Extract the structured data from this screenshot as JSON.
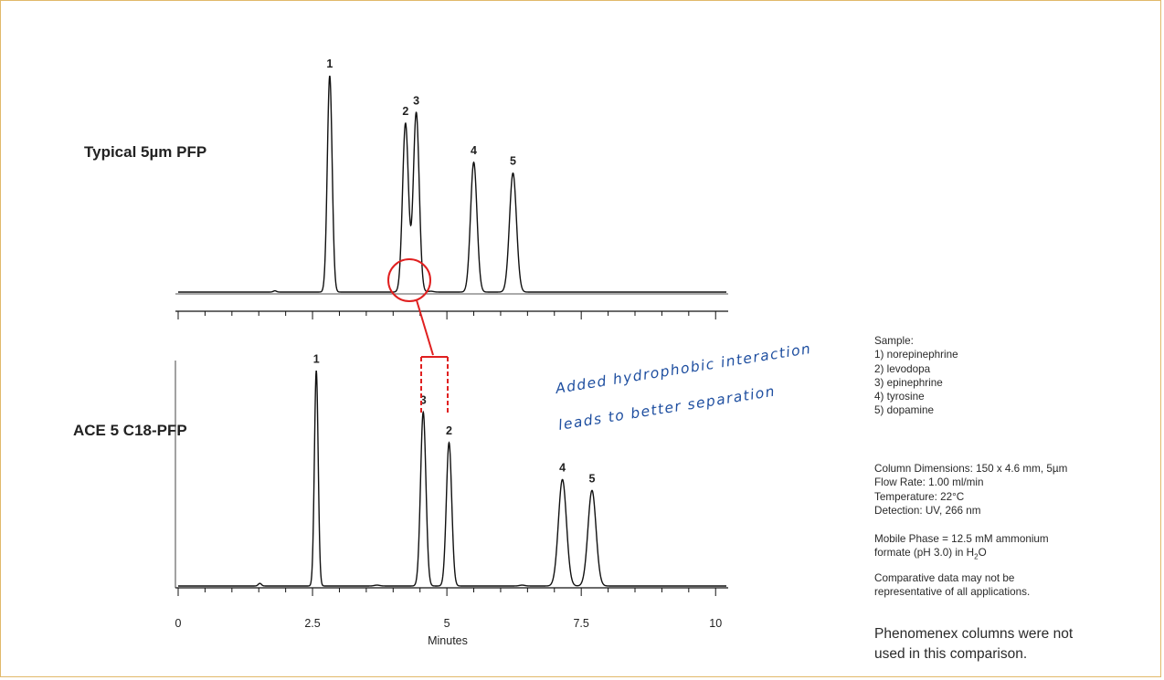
{
  "chart_data": [
    {
      "type": "line",
      "title": "Typical 5µm PFP",
      "peaks": [
        {
          "label": "1",
          "rt": 2.82,
          "height": 1.0,
          "width": 0.045
        },
        {
          "label": "2",
          "rt": 4.23,
          "height": 0.78,
          "width": 0.055
        },
        {
          "label": "3",
          "rt": 4.43,
          "height": 0.83,
          "width": 0.055
        },
        {
          "label": "4",
          "rt": 5.5,
          "height": 0.6,
          "width": 0.06
        },
        {
          "label": "5",
          "rt": 6.23,
          "height": 0.55,
          "width": 0.065
        }
      ],
      "xlim": [
        0,
        10.2
      ]
    },
    {
      "type": "line",
      "title": "ACE 5 C18-PFP",
      "peaks": [
        {
          "label": "1",
          "rt": 2.57,
          "height": 0.99,
          "width": 0.035
        },
        {
          "label": "3",
          "rt": 4.56,
          "height": 0.8,
          "width": 0.05
        },
        {
          "label": "2",
          "rt": 5.04,
          "height": 0.66,
          "width": 0.05
        },
        {
          "label": "4",
          "rt": 7.15,
          "height": 0.49,
          "width": 0.075
        },
        {
          "label": "5",
          "rt": 7.7,
          "height": 0.44,
          "width": 0.075
        }
      ],
      "xlabel": "Minutes",
      "xticks": [
        "0",
        "2.5",
        "5",
        "7.5",
        "10"
      ],
      "xlim": [
        0,
        10.2
      ]
    }
  ],
  "annotation": {
    "line1": "Added hydrophobic interaction",
    "line2": "leads to better separation",
    "color": "#1f4fa0",
    "highlight_color": "#e02020"
  },
  "sample": {
    "heading": "Sample:",
    "items": [
      "1) norepinephrine",
      "2) levodopa",
      "3) epinephrine",
      "4) tyrosine",
      "5) dopamine"
    ]
  },
  "conditions": {
    "column": "Column Dimensions:  150 x 4.6 mm, 5µm",
    "flow": "Flow Rate: 1.00 ml/min",
    "temperature": "Temperature: 22°C",
    "detection": "Detection: UV, 266 nm",
    "mobile_phase_line1": "Mobile Phase  = 12.5 mM ammonium",
    "mobile_phase_line2_prefix": "formate (pH 3.0) in H",
    "mobile_phase_sub": "2",
    "mobile_phase_suffix": "O",
    "disclaimer_line1": "Comparative data may not be",
    "disclaimer_line2": "representative of all applications.",
    "footer_line1": "Phenomenex columns were not",
    "footer_line2": "used in this comparison."
  }
}
